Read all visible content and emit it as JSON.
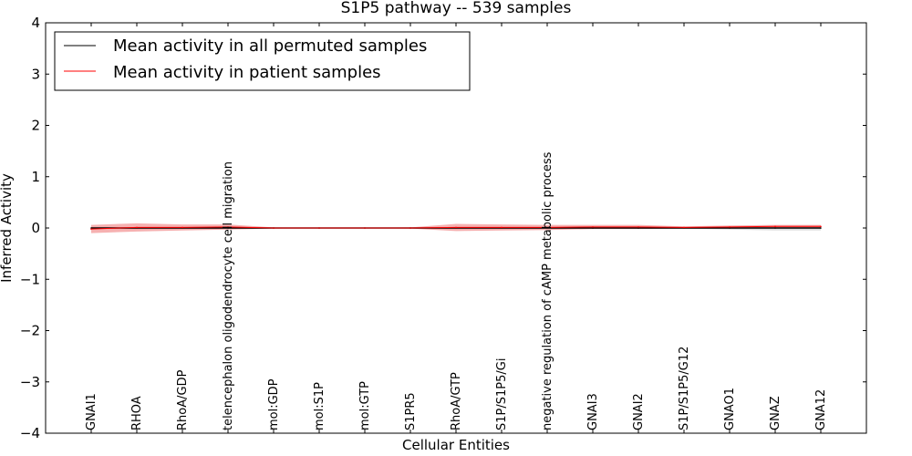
{
  "chart_data": {
    "type": "line",
    "title": "S1P5 pathway -- 539 samples",
    "xlabel": "Cellular Entities",
    "ylabel": "Inferred Activity",
    "ylim": [
      -4,
      4
    ],
    "yticks": [
      4,
      3,
      2,
      1,
      0,
      -1,
      -2,
      -3,
      -4
    ],
    "ytick_labels": [
      "4",
      "3",
      "2",
      "1",
      "0",
      "−1",
      "−2",
      "−3",
      "−4"
    ],
    "categories": [
      "GNAI1",
      "RHOA",
      "RhoA/GDP",
      "telencephalon oligodendrocyte cell migration",
      "mol:GDP",
      "mol:S1P",
      "mol:GTP",
      "S1PR5",
      "RhoA/GTP",
      "S1P/S1P5/Gi",
      "negative regulation of cAMP metabolic process",
      "GNAI3",
      "GNAI2",
      "S1P/S1P5/G12",
      "GNAO1",
      "GNAZ",
      "GNA12"
    ],
    "legend_position": "top-left",
    "series": [
      {
        "name": "Mean activity in all permuted samples",
        "color": "#000000",
        "values": [
          0,
          0,
          0,
          0,
          0,
          0,
          0,
          0,
          0,
          0,
          0,
          0,
          0,
          0,
          0,
          0,
          0
        ],
        "band": [
          0.01,
          0.01,
          0.01,
          0.01,
          0.005,
          0.005,
          0.005,
          0.005,
          0.01,
          0.01,
          0.01,
          0.01,
          0.01,
          0.01,
          0.03,
          0.05,
          0.05
        ]
      },
      {
        "name": "Mean activity in patient samples",
        "color": "#ff0000",
        "fill": "#f4a3a3",
        "values": [
          -0.02,
          0.01,
          0.01,
          0.02,
          0.0,
          0.0,
          0.0,
          0.0,
          0.01,
          0.01,
          0.01,
          0.02,
          0.02,
          0.01,
          0.02,
          0.03,
          0.03
        ],
        "band": [
          0.08,
          0.08,
          0.06,
          0.05,
          0.01,
          0.005,
          0.005,
          0.01,
          0.07,
          0.06,
          0.05,
          0.04,
          0.04,
          0.02,
          0.03,
          0.03,
          0.03
        ]
      }
    ]
  }
}
